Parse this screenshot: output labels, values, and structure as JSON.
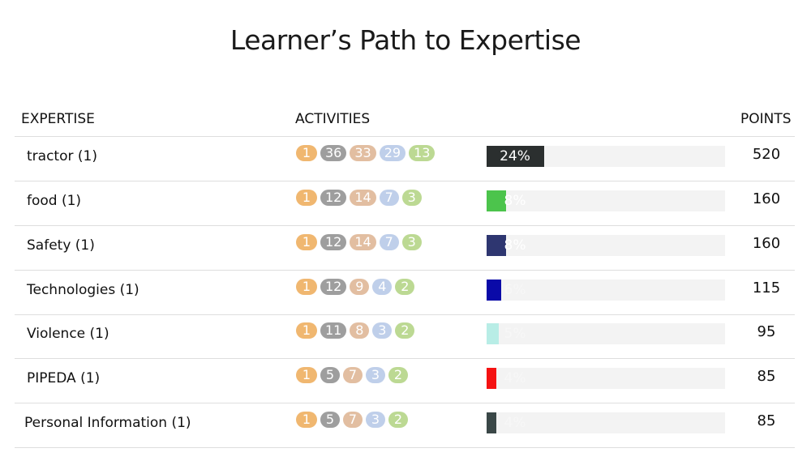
{
  "title": "Learner’s Path to Expertise",
  "headers": {
    "expertise": "EXPERTISE",
    "activities": "ACTIVITIES",
    "points": "POINTS"
  },
  "badge_colors": [
    "#f0b770",
    "#9e9e9e",
    "#e2bea1",
    "#bfcfea",
    "#bcd993"
  ],
  "rows": [
    {
      "name": "tractor (1)",
      "badges": [
        "1",
        "36",
        "33",
        "29",
        "13"
      ],
      "progress": 24,
      "progress_label": "24%",
      "progress_color": "#2b2f2f",
      "points": "520"
    },
    {
      "name": "food (1)",
      "badges": [
        "1",
        "12",
        "14",
        "7",
        "3"
      ],
      "progress": 8,
      "progress_label": "8%",
      "progress_color": "#4cc44c",
      "points": "160"
    },
    {
      "name": "Safety (1)",
      "badges": [
        "1",
        "12",
        "14",
        "7",
        "3"
      ],
      "progress": 8,
      "progress_label": "8%",
      "progress_color": "#2e3670",
      "points": "160"
    },
    {
      "name": "Technologies (1)",
      "badges": [
        "1",
        "12",
        "9",
        "4",
        "2"
      ],
      "progress": 6,
      "progress_label": "6%",
      "progress_color": "#0a0aa8",
      "points": "115"
    },
    {
      "name": "Violence (1)",
      "badges": [
        "1",
        "11",
        "8",
        "3",
        "2"
      ],
      "progress": 5,
      "progress_label": "5%",
      "progress_color": "#b8ede6",
      "points": "95"
    },
    {
      "name": "PIPEDA (1)",
      "badges": [
        "1",
        "5",
        "7",
        "3",
        "2"
      ],
      "progress": 4,
      "progress_label": "4%",
      "progress_color": "#f51212",
      "points": "85"
    },
    {
      "name": "Personal Information (1)",
      "badges": [
        "1",
        "5",
        "7",
        "3",
        "2"
      ],
      "progress": 4,
      "progress_label": "4%",
      "progress_color": "#3a4747",
      "points": "85"
    }
  ]
}
